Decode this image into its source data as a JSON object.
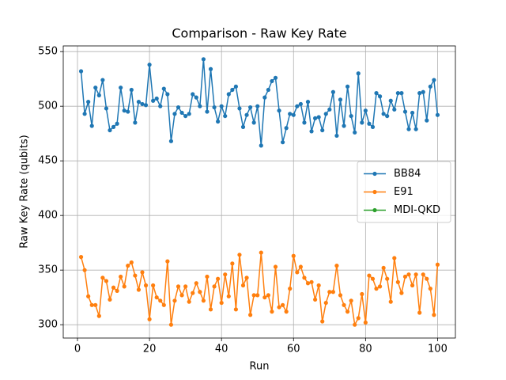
{
  "chart_data": {
    "type": "line",
    "title": "Comparison - Raw Key Rate",
    "x_label": "Run",
    "y_label": "Raw Key Rate (qubits)",
    "x": [
      1,
      2,
      3,
      4,
      5,
      6,
      7,
      8,
      9,
      10,
      11,
      12,
      13,
      14,
      15,
      16,
      17,
      18,
      19,
      20,
      21,
      22,
      23,
      24,
      25,
      26,
      27,
      28,
      29,
      30,
      31,
      32,
      33,
      34,
      35,
      36,
      37,
      38,
      39,
      40,
      41,
      42,
      43,
      44,
      45,
      46,
      47,
      48,
      49,
      50,
      51,
      52,
      53,
      54,
      55,
      56,
      57,
      58,
      59,
      60,
      61,
      62,
      63,
      64,
      65,
      66,
      67,
      68,
      69,
      70,
      71,
      72,
      73,
      74,
      75,
      76,
      77,
      78,
      79,
      80,
      81,
      82,
      83,
      84,
      85,
      86,
      87,
      88,
      89,
      90,
      91,
      92,
      93,
      94,
      95,
      96,
      97,
      98,
      99,
      100
    ],
    "series": [
      {
        "name": "BB84",
        "color": "#1f77b4",
        "values": [
          532,
          493,
          504,
          482,
          517,
          510,
          524,
          498,
          478,
          481,
          484,
          517,
          496,
          495,
          515,
          485,
          504,
          502,
          501,
          538,
          505,
          507,
          500,
          516,
          511,
          468,
          493,
          499,
          494,
          491,
          493,
          511,
          508,
          500,
          543,
          495,
          534,
          499,
          486,
          500,
          491,
          511,
          515,
          518,
          498,
          481,
          492,
          499,
          485,
          500,
          464,
          508,
          515,
          523,
          526,
          496,
          467,
          480,
          493,
          492,
          500,
          502,
          485,
          504,
          477,
          489,
          490,
          478,
          493,
          497,
          513,
          473,
          506,
          482,
          518,
          491,
          476,
          530,
          485,
          496,
          484,
          481,
          512,
          509,
          493,
          491,
          505,
          497,
          512,
          512,
          495,
          479,
          494,
          479,
          512,
          513,
          487,
          518,
          524,
          492
        ]
      },
      {
        "name": "E91",
        "color": "#ff7f0e",
        "values": [
          362,
          350,
          326,
          318,
          318,
          308,
          343,
          340,
          323,
          334,
          331,
          344,
          335,
          354,
          357,
          345,
          332,
          348,
          336,
          305,
          336,
          325,
          322,
          318,
          358,
          300,
          322,
          335,
          327,
          335,
          321,
          329,
          338,
          330,
          322,
          344,
          314,
          335,
          342,
          320,
          346,
          326,
          356,
          314,
          364,
          336,
          343,
          309,
          327,
          327,
          366,
          325,
          327,
          312,
          353,
          316,
          318,
          312,
          333,
          363,
          348,
          353,
          343,
          338,
          339,
          323,
          336,
          303,
          320,
          330,
          330,
          354,
          327,
          318,
          312,
          322,
          300,
          306,
          328,
          302,
          345,
          342,
          333,
          335,
          352,
          342,
          321,
          361,
          339,
          329,
          344,
          346,
          336,
          346,
          311,
          346,
          342,
          333,
          309,
          355
        ]
      },
      {
        "name": "MDI-QKD",
        "color": "#2ca02c",
        "values": [
          null,
          null,
          null,
          null,
          null,
          null,
          null,
          null,
          null,
          null,
          null,
          null,
          null,
          null,
          null,
          null,
          null,
          null,
          null,
          null,
          null,
          null,
          null,
          null,
          null,
          null,
          null,
          null,
          null,
          null,
          null,
          null,
          null,
          null,
          null,
          null,
          null,
          null,
          null,
          null,
          null,
          null,
          null,
          null,
          null,
          null,
          null,
          null,
          null,
          null,
          null,
          null,
          null,
          null,
          null,
          null,
          null,
          null,
          null,
          null,
          null,
          null,
          null,
          null,
          null,
          null,
          null,
          null,
          null,
          null,
          null,
          null,
          null,
          null,
          null,
          null,
          null,
          null,
          null,
          null,
          null,
          null,
          null,
          null,
          null,
          null,
          null,
          null,
          null,
          null,
          null,
          null,
          null,
          null,
          null,
          null,
          null,
          null,
          null,
          null
        ]
      }
    ],
    "xlim": [
      -3.95,
      104.95
    ],
    "ylim": [
      287.8,
      555.2
    ],
    "xticks": [
      0,
      20,
      40,
      60,
      80,
      100
    ],
    "yticks": [
      300,
      350,
      400,
      450,
      500,
      550
    ],
    "grid": true,
    "legend": "center right"
  }
}
